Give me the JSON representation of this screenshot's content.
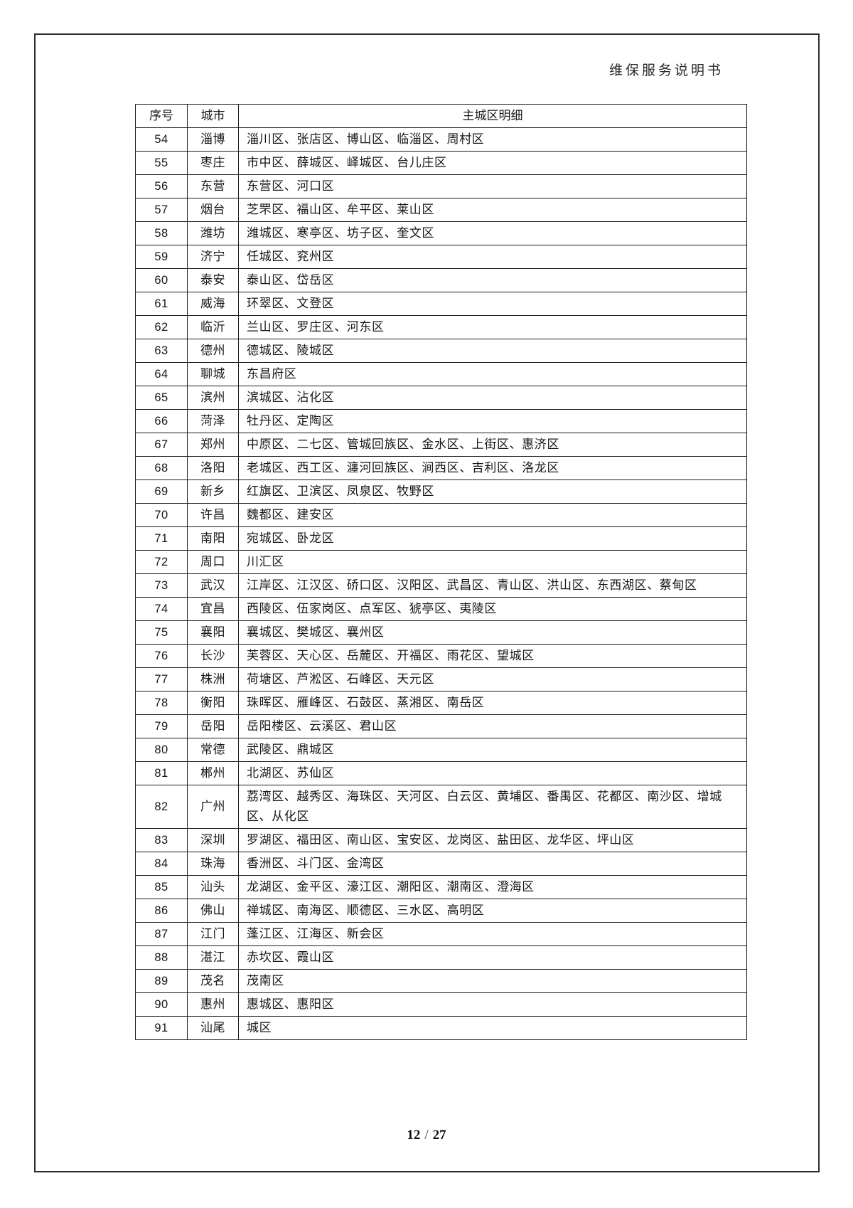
{
  "page": {
    "header_title": "维保服务说明书",
    "footer": {
      "current": "12",
      "separator": "/",
      "total": "27"
    }
  },
  "table": {
    "headers": {
      "no": "序号",
      "city": "城市",
      "districts": "主城区明细"
    },
    "rows": [
      {
        "no": "54",
        "city": "淄博",
        "districts": "淄川区、张店区、博山区、临淄区、周村区"
      },
      {
        "no": "55",
        "city": "枣庄",
        "districts": "市中区、薛城区、峄城区、台儿庄区"
      },
      {
        "no": "56",
        "city": "东营",
        "districts": "东营区、河口区"
      },
      {
        "no": "57",
        "city": "烟台",
        "districts": "芝罘区、福山区、牟平区、莱山区"
      },
      {
        "no": "58",
        "city": "潍坊",
        "districts": "潍城区、寒亭区、坊子区、奎文区"
      },
      {
        "no": "59",
        "city": "济宁",
        "districts": "任城区、兖州区"
      },
      {
        "no": "60",
        "city": "泰安",
        "districts": "泰山区、岱岳区"
      },
      {
        "no": "61",
        "city": "威海",
        "districts": "环翠区、文登区"
      },
      {
        "no": "62",
        "city": "临沂",
        "districts": "兰山区、罗庄区、河东区"
      },
      {
        "no": "63",
        "city": "德州",
        "districts": "德城区、陵城区"
      },
      {
        "no": "64",
        "city": "聊城",
        "districts": "东昌府区"
      },
      {
        "no": "65",
        "city": "滨州",
        "districts": "滨城区、沾化区"
      },
      {
        "no": "66",
        "city": "菏泽",
        "districts": "牡丹区、定陶区"
      },
      {
        "no": "67",
        "city": "郑州",
        "districts": "中原区、二七区、管城回族区、金水区、上街区、惠济区"
      },
      {
        "no": "68",
        "city": "洛阳",
        "districts": "老城区、西工区、瀍河回族区、涧西区、吉利区、洛龙区"
      },
      {
        "no": "69",
        "city": "新乡",
        "districts": "红旗区、卫滨区、凤泉区、牧野区"
      },
      {
        "no": "70",
        "city": "许昌",
        "districts": "魏都区、建安区"
      },
      {
        "no": "71",
        "city": "南阳",
        "districts": "宛城区、卧龙区"
      },
      {
        "no": "72",
        "city": "周口",
        "districts": "川汇区"
      },
      {
        "no": "73",
        "city": "武汉",
        "districts": "江岸区、江汉区、硚口区、汉阳区、武昌区、青山区、洪山区、东西湖区、蔡甸区"
      },
      {
        "no": "74",
        "city": "宜昌",
        "districts": "西陵区、伍家岗区、点军区、猇亭区、夷陵区"
      },
      {
        "no": "75",
        "city": "襄阳",
        "districts": "襄城区、樊城区、襄州区"
      },
      {
        "no": "76",
        "city": "长沙",
        "districts": "芙蓉区、天心区、岳麓区、开福区、雨花区、望城区"
      },
      {
        "no": "77",
        "city": "株洲",
        "districts": "荷塘区、芦淞区、石峰区、天元区"
      },
      {
        "no": "78",
        "city": "衡阳",
        "districts": "珠晖区、雁峰区、石鼓区、蒸湘区、南岳区"
      },
      {
        "no": "79",
        "city": "岳阳",
        "districts": "岳阳楼区、云溪区、君山区"
      },
      {
        "no": "80",
        "city": "常德",
        "districts": "武陵区、鼎城区"
      },
      {
        "no": "81",
        "city": "郴州",
        "districts": "北湖区、苏仙区"
      },
      {
        "no": "82",
        "city": "广州",
        "districts": "荔湾区、越秀区、海珠区、天河区、白云区、黄埔区、番禺区、花都区、南沙区、增城区、从化区"
      },
      {
        "no": "83",
        "city": "深圳",
        "districts": "罗湖区、福田区、南山区、宝安区、龙岗区、盐田区、龙华区、坪山区"
      },
      {
        "no": "84",
        "city": "珠海",
        "districts": "香洲区、斗门区、金湾区"
      },
      {
        "no": "85",
        "city": "汕头",
        "districts": "龙湖区、金平区、濠江区、潮阳区、潮南区、澄海区"
      },
      {
        "no": "86",
        "city": "佛山",
        "districts": "禅城区、南海区、顺德区、三水区、高明区"
      },
      {
        "no": "87",
        "city": "江门",
        "districts": "蓬江区、江海区、新会区"
      },
      {
        "no": "88",
        "city": "湛江",
        "districts": "赤坎区、霞山区"
      },
      {
        "no": "89",
        "city": "茂名",
        "districts": "茂南区"
      },
      {
        "no": "90",
        "city": "惠州",
        "districts": "惠城区、惠阳区"
      },
      {
        "no": "91",
        "city": "汕尾",
        "districts": "城区"
      }
    ]
  }
}
